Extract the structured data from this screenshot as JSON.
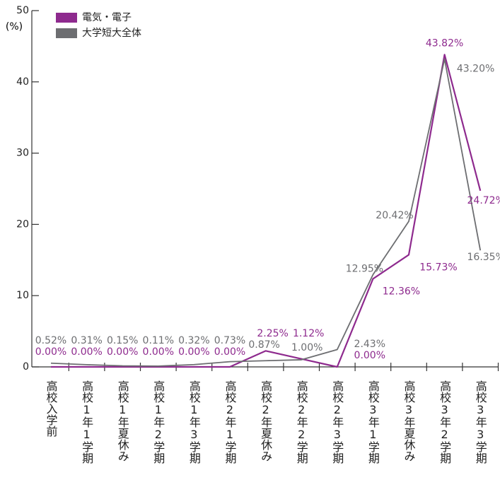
{
  "chart_data": {
    "type": "line",
    "y_label": "(%)",
    "categories": [
      "高校入学前",
      "高校1年1学期",
      "高校1年夏休み",
      "高校1年2学期",
      "高校1年3学期",
      "高校2年1学期",
      "高校2年夏休み",
      "高校2年2学期",
      "高校2年3学期",
      "高校3年1学期",
      "高校3年夏休み",
      "高校3年2学期",
      "高校3年3学期"
    ],
    "series": [
      {
        "name": "電気・電子",
        "color": "#8e2a8e",
        "values": [
          0,
          0,
          0,
          0,
          0,
          0,
          2.25,
          1.12,
          0,
          12.36,
          15.73,
          43.82,
          24.72
        ],
        "value_labels": [
          "0.00%",
          "0.00%",
          "0.00%",
          "0.00%",
          "0.00%",
          "0.00%",
          "2.25%",
          "1.12%",
          "0.00%",
          "12.36%",
          "15.73%",
          "43.82%",
          "24.72%"
        ]
      },
      {
        "name": "大学短大全体",
        "color": "#6d6e71",
        "values": [
          0.52,
          0.31,
          0.15,
          0.11,
          0.32,
          0.73,
          0.87,
          1.0,
          2.43,
          12.95,
          20.42,
          43.2,
          16.35
        ],
        "value_labels": [
          "0.52%",
          "0.31%",
          "0.15%",
          "0.11%",
          "0.32%",
          "0.73%",
          "0.87%",
          "1.00%",
          "2.43%",
          "12.95%",
          "20.42%",
          "43.20%",
          "16.35%"
        ]
      }
    ],
    "ylim": [
      0,
      50
    ],
    "yticks": [
      0,
      10,
      20,
      30,
      40,
      50
    ],
    "legend": "upper left"
  }
}
